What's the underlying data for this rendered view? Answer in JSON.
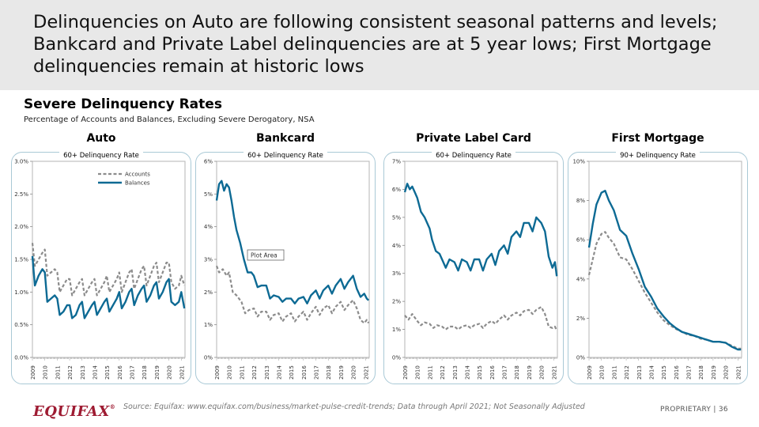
{
  "header": {
    "title": "Delinquencies on Auto are following consistent seasonal patterns and levels; Bankcard and Private Label delinquencies are at 5 year lows; First Mortgage delinquencies remain at historic lows"
  },
  "section": {
    "title": "Severe Delinquency Rates",
    "subtitle": "Percentage of Accounts and Balances, Excluding Severe Derogatory, NSA"
  },
  "footer": {
    "logo": "EQUIFAX",
    "logo_mark": "®",
    "source": "Source: Equifax: www.equifax.com/business/market-pulse-credit-trends; Data through April 2021; Not Seasonally Adjusted",
    "proprietary": "PROPRIETARY  |  36"
  },
  "colors": {
    "balances": "#0d6a94",
    "accounts": "#8c8c8c",
    "border": "#a9c9d6",
    "logo": "#9e1b32"
  },
  "chart_data": [
    {
      "type": "line",
      "title": "Auto",
      "subtitle": "60+ Delinquency Rate",
      "x_ticks": [
        "2009",
        "2010",
        "2011",
        "2012",
        "2013",
        "2014",
        "2015",
        "2016",
        "2017",
        "2018",
        "2019",
        "2020",
        "2021"
      ],
      "y_ticks": [
        "0.0%",
        "0.5%",
        "1.0%",
        "1.5%",
        "2.0%",
        "2.5%",
        "3.0%"
      ],
      "ylim": [
        0,
        3.0
      ],
      "legend": [
        "Accounts",
        "Balances"
      ],
      "annotation": "",
      "series": [
        {
          "name": "Accounts",
          "style": "dashed",
          "x": [
            2009.0,
            2009.2,
            2009.5,
            2009.8,
            2010.0,
            2010.2,
            2010.5,
            2010.8,
            2011.0,
            2011.2,
            2011.5,
            2011.8,
            2012.0,
            2012.2,
            2012.5,
            2012.8,
            2013.0,
            2013.2,
            2013.5,
            2013.8,
            2014.0,
            2014.2,
            2014.5,
            2014.8,
            2015.0,
            2015.2,
            2015.5,
            2015.8,
            2016.0,
            2016.2,
            2016.5,
            2016.8,
            2017.0,
            2017.2,
            2017.5,
            2017.8,
            2018.0,
            2018.2,
            2018.5,
            2018.8,
            2019.0,
            2019.2,
            2019.5,
            2019.8,
            2020.0,
            2020.2,
            2020.5,
            2020.8,
            2021.0,
            2021.25
          ],
          "values": [
            1.75,
            1.4,
            1.5,
            1.6,
            1.65,
            1.25,
            1.3,
            1.35,
            1.3,
            1.0,
            1.1,
            1.2,
            1.2,
            0.95,
            1.05,
            1.15,
            1.2,
            0.95,
            1.05,
            1.15,
            1.2,
            0.95,
            1.05,
            1.15,
            1.25,
            1.0,
            1.1,
            1.2,
            1.3,
            1.0,
            1.15,
            1.3,
            1.35,
            1.05,
            1.2,
            1.35,
            1.4,
            1.1,
            1.25,
            1.4,
            1.45,
            1.15,
            1.3,
            1.45,
            1.45,
            1.15,
            1.05,
            1.1,
            1.25,
            1.1
          ]
        },
        {
          "name": "Balances",
          "style": "solid",
          "x": [
            2009.0,
            2009.2,
            2009.5,
            2009.8,
            2010.0,
            2010.2,
            2010.5,
            2010.8,
            2011.0,
            2011.2,
            2011.5,
            2011.8,
            2012.0,
            2012.2,
            2012.5,
            2012.8,
            2013.0,
            2013.2,
            2013.5,
            2013.8,
            2014.0,
            2014.2,
            2014.5,
            2014.8,
            2015.0,
            2015.2,
            2015.5,
            2015.8,
            2016.0,
            2016.2,
            2016.5,
            2016.8,
            2017.0,
            2017.2,
            2017.5,
            2017.8,
            2018.0,
            2018.2,
            2018.5,
            2018.8,
            2019.0,
            2019.2,
            2019.5,
            2019.8,
            2020.0,
            2020.2,
            2020.5,
            2020.8,
            2021.0,
            2021.25
          ],
          "values": [
            1.55,
            1.1,
            1.25,
            1.35,
            1.3,
            0.85,
            0.9,
            0.95,
            0.9,
            0.65,
            0.7,
            0.8,
            0.8,
            0.6,
            0.65,
            0.8,
            0.85,
            0.6,
            0.7,
            0.8,
            0.85,
            0.65,
            0.75,
            0.85,
            0.9,
            0.7,
            0.8,
            0.9,
            1.0,
            0.75,
            0.85,
            1.0,
            1.05,
            0.8,
            0.95,
            1.05,
            1.1,
            0.85,
            0.95,
            1.1,
            1.15,
            0.9,
            1.0,
            1.15,
            1.2,
            0.85,
            0.8,
            0.85,
            1.0,
            0.75
          ]
        }
      ]
    },
    {
      "type": "line",
      "title": "Bankcard",
      "subtitle": "60+ Delinquency Rate",
      "x_ticks": [
        "2009",
        "2010",
        "2011",
        "2012",
        "2013",
        "2014",
        "2015",
        "2016",
        "2017",
        "2018",
        "2019",
        "2020",
        "2021"
      ],
      "y_ticks": [
        "0%",
        "1%",
        "2%",
        "3%",
        "4%",
        "5%",
        "6%"
      ],
      "ylim": [
        0,
        6
      ],
      "legend": [],
      "annotation": "Plot Area",
      "series": [
        {
          "name": "Accounts",
          "style": "dashed",
          "x": [
            2009.0,
            2009.2,
            2009.5,
            2009.8,
            2010.0,
            2010.3,
            2010.6,
            2011.0,
            2011.3,
            2011.6,
            2012.0,
            2012.3,
            2012.6,
            2013.0,
            2013.3,
            2013.6,
            2014.0,
            2014.3,
            2014.6,
            2015.0,
            2015.3,
            2015.6,
            2016.0,
            2016.3,
            2016.6,
            2017.0,
            2017.3,
            2017.6,
            2018.0,
            2018.3,
            2018.6,
            2019.0,
            2019.3,
            2019.6,
            2020.0,
            2020.3,
            2020.6,
            2020.9,
            2021.1,
            2021.25
          ],
          "values": [
            2.8,
            2.6,
            2.7,
            2.5,
            2.6,
            2.0,
            1.9,
            1.7,
            1.35,
            1.45,
            1.5,
            1.25,
            1.4,
            1.4,
            1.15,
            1.3,
            1.35,
            1.1,
            1.25,
            1.35,
            1.1,
            1.25,
            1.4,
            1.15,
            1.35,
            1.55,
            1.3,
            1.5,
            1.6,
            1.35,
            1.55,
            1.7,
            1.45,
            1.6,
            1.75,
            1.5,
            1.15,
            1.05,
            1.15,
            1.05
          ]
        },
        {
          "name": "Balances",
          "style": "solid",
          "x": [
            2009.0,
            2009.2,
            2009.4,
            2009.6,
            2009.8,
            2010.0,
            2010.2,
            2010.4,
            2010.6,
            2010.9,
            2011.2,
            2011.5,
            2011.8,
            2012.0,
            2012.3,
            2012.6,
            2013.0,
            2013.3,
            2013.6,
            2014.0,
            2014.3,
            2014.6,
            2015.0,
            2015.3,
            2015.6,
            2016.0,
            2016.3,
            2016.6,
            2017.0,
            2017.3,
            2017.6,
            2018.0,
            2018.3,
            2018.6,
            2019.0,
            2019.3,
            2019.6,
            2020.0,
            2020.3,
            2020.6,
            2020.9,
            2021.1,
            2021.25
          ],
          "values": [
            4.8,
            5.3,
            5.4,
            5.1,
            5.3,
            5.2,
            4.8,
            4.3,
            3.9,
            3.5,
            3.0,
            2.6,
            2.6,
            2.5,
            2.15,
            2.2,
            2.2,
            1.8,
            1.9,
            1.85,
            1.7,
            1.8,
            1.8,
            1.65,
            1.8,
            1.85,
            1.65,
            1.9,
            2.05,
            1.8,
            2.05,
            2.2,
            1.95,
            2.2,
            2.4,
            2.1,
            2.3,
            2.5,
            2.1,
            1.85,
            1.95,
            1.8,
            1.75
          ]
        }
      ]
    },
    {
      "type": "line",
      "title": "Private Label Card",
      "subtitle": "60+ Delinquency Rate",
      "x_ticks": [
        "2009",
        "2010",
        "2011",
        "2012",
        "2013",
        "2014",
        "2015",
        "2016",
        "2017",
        "2018",
        "2019",
        "2020",
        "2021"
      ],
      "y_ticks": [
        "0%",
        "1%",
        "2%",
        "3%",
        "4%",
        "5%",
        "6%",
        "7%"
      ],
      "ylim": [
        0,
        7
      ],
      "legend": [],
      "annotation": "",
      "series": [
        {
          "name": "Accounts",
          "style": "dashed",
          "x": [
            2009.0,
            2009.3,
            2009.6,
            2010.0,
            2010.3,
            2010.6,
            2011.0,
            2011.3,
            2011.6,
            2012.0,
            2012.3,
            2012.6,
            2013.0,
            2013.3,
            2013.6,
            2014.0,
            2014.3,
            2014.6,
            2015.0,
            2015.3,
            2015.6,
            2016.0,
            2016.3,
            2016.6,
            2017.0,
            2017.3,
            2017.6,
            2018.0,
            2018.3,
            2018.6,
            2019.0,
            2019.3,
            2019.6,
            2020.0,
            2020.3,
            2020.6,
            2020.9,
            2021.1,
            2021.25
          ],
          "values": [
            1.5,
            1.35,
            1.55,
            1.3,
            1.15,
            1.25,
            1.2,
            1.05,
            1.15,
            1.1,
            1.0,
            1.1,
            1.1,
            1.0,
            1.1,
            1.15,
            1.05,
            1.15,
            1.2,
            1.05,
            1.2,
            1.3,
            1.2,
            1.35,
            1.5,
            1.35,
            1.5,
            1.6,
            1.5,
            1.65,
            1.7,
            1.55,
            1.7,
            1.8,
            1.55,
            1.1,
            1.05,
            1.1,
            0.95
          ]
        },
        {
          "name": "Balances",
          "style": "solid",
          "x": [
            2009.0,
            2009.2,
            2009.4,
            2009.6,
            2009.8,
            2010.0,
            2010.3,
            2010.6,
            2011.0,
            2011.2,
            2011.5,
            2011.8,
            2012.0,
            2012.3,
            2012.6,
            2013.0,
            2013.3,
            2013.6,
            2014.0,
            2014.3,
            2014.6,
            2015.0,
            2015.3,
            2015.6,
            2016.0,
            2016.3,
            2016.6,
            2017.0,
            2017.3,
            2017.6,
            2018.0,
            2018.3,
            2018.6,
            2019.0,
            2019.3,
            2019.6,
            2020.0,
            2020.3,
            2020.6,
            2020.9,
            2021.1,
            2021.25
          ],
          "values": [
            5.9,
            6.2,
            6.0,
            6.1,
            5.9,
            5.7,
            5.2,
            5.0,
            4.6,
            4.2,
            3.8,
            3.7,
            3.5,
            3.2,
            3.5,
            3.4,
            3.1,
            3.5,
            3.4,
            3.1,
            3.5,
            3.5,
            3.1,
            3.5,
            3.7,
            3.3,
            3.8,
            4.0,
            3.7,
            4.3,
            4.5,
            4.3,
            4.8,
            4.8,
            4.5,
            5.0,
            4.8,
            4.5,
            3.6,
            3.2,
            3.4,
            2.9
          ]
        }
      ]
    },
    {
      "type": "line",
      "title": "First Mortgage",
      "subtitle": "90+ Delinquency Rate",
      "x_ticks": [
        "2009",
        "2010",
        "2011",
        "2012",
        "2013",
        "2014",
        "2015",
        "2016",
        "2017",
        "2018",
        "2019",
        "2020",
        "2021"
      ],
      "y_ticks": [
        "0%",
        "2%",
        "4%",
        "6%",
        "8%",
        "10%"
      ],
      "ylim": [
        0,
        10
      ],
      "legend": [],
      "annotation": "",
      "series": [
        {
          "name": "Accounts",
          "style": "dashed",
          "x": [
            2009.0,
            2009.3,
            2009.6,
            2010.0,
            2010.3,
            2010.6,
            2011.0,
            2011.5,
            2012.0,
            2012.5,
            2013.0,
            2013.5,
            2014.0,
            2014.5,
            2015.0,
            2015.5,
            2016.0,
            2016.5,
            2017.0,
            2017.5,
            2018.0,
            2018.5,
            2019.0,
            2019.5,
            2020.0,
            2020.5,
            2021.0,
            2021.25
          ],
          "values": [
            4.2,
            5.0,
            5.8,
            6.3,
            6.4,
            6.1,
            5.8,
            5.1,
            5.0,
            4.5,
            3.9,
            3.3,
            2.8,
            2.3,
            1.9,
            1.65,
            1.45,
            1.3,
            1.15,
            1.1,
            0.95,
            0.9,
            0.8,
            0.8,
            0.75,
            0.6,
            0.45,
            0.45
          ]
        },
        {
          "name": "Balances",
          "style": "solid",
          "x": [
            2009.0,
            2009.3,
            2009.6,
            2010.0,
            2010.3,
            2010.6,
            2011.0,
            2011.5,
            2012.0,
            2012.5,
            2013.0,
            2013.5,
            2014.0,
            2014.5,
            2015.0,
            2015.5,
            2016.0,
            2016.5,
            2017.0,
            2017.5,
            2018.0,
            2018.5,
            2019.0,
            2019.5,
            2020.0,
            2020.5,
            2021.0,
            2021.25
          ],
          "values": [
            5.6,
            6.8,
            7.8,
            8.4,
            8.5,
            8.0,
            7.5,
            6.5,
            6.2,
            5.3,
            4.5,
            3.6,
            3.1,
            2.5,
            2.1,
            1.75,
            1.5,
            1.3,
            1.2,
            1.1,
            1.0,
            0.9,
            0.8,
            0.8,
            0.75,
            0.55,
            0.4,
            0.4
          ]
        }
      ]
    }
  ]
}
